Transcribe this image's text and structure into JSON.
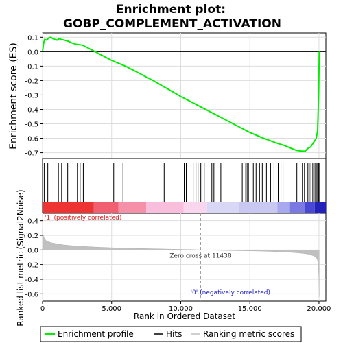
{
  "chart_data": {
    "type": "line",
    "title_line1": "Enrichment plot:",
    "title_line2": "GOBP_COMPLEMENT_ACTIVATION",
    "es_ylabel": "Enrichment score (ES)",
    "metric_ylabel": "Ranked list metric (Signal2Noise)",
    "xlabel": "Rank in Ordered Dataset",
    "xlim": [
      0,
      20500
    ],
    "es_ylim": [
      -0.74,
      0.13
    ],
    "metric_ylim": [
      -0.7,
      0.5
    ],
    "x_ticks": [
      {
        "value": 0,
        "label": "0"
      },
      {
        "value": 5000,
        "label": "5,000"
      },
      {
        "value": 10000,
        "label": "10,000"
      },
      {
        "value": 15000,
        "label": "15,000"
      },
      {
        "value": 20000,
        "label": "20,000"
      }
    ],
    "es_ticks": [
      {
        "value": 0.1,
        "label": "0.1"
      },
      {
        "value": 0.0,
        "label": "0.0"
      },
      {
        "value": -0.1,
        "label": "-0.1"
      },
      {
        "value": -0.2,
        "label": "-0.2"
      },
      {
        "value": -0.3,
        "label": "-0.3"
      },
      {
        "value": -0.4,
        "label": "-0.4"
      },
      {
        "value": -0.5,
        "label": "-0.5"
      },
      {
        "value": -0.6,
        "label": "-0.6"
      },
      {
        "value": -0.7,
        "label": "-0.7"
      }
    ],
    "metric_ticks": [
      {
        "value": 0.4,
        "label": "0.4"
      },
      {
        "value": 0.2,
        "label": "0.2"
      },
      {
        "value": 0.0,
        "label": "0.0"
      },
      {
        "value": -0.2,
        "label": "-0.2"
      },
      {
        "value": -0.4,
        "label": "-0.4"
      },
      {
        "value": -0.6,
        "label": "-0.6"
      }
    ],
    "series": [
      {
        "name": "Enrichment profile",
        "color": "#00ee00",
        "x": [
          0,
          80,
          150,
          300,
          450,
          600,
          750,
          900,
          1050,
          1200,
          1350,
          1500,
          1800,
          2100,
          2400,
          2700,
          2900,
          3200,
          5000,
          6000,
          8000,
          10000,
          12000,
          14000,
          15000,
          16000,
          17000,
          17500,
          18000,
          18400,
          18700,
          19000,
          19200,
          19400,
          19600,
          19800,
          19900,
          19980,
          20020
        ],
        "y": [
          0.0,
          0.06,
          0.085,
          0.08,
          0.095,
          0.1,
          0.09,
          0.085,
          0.08,
          0.09,
          0.085,
          0.082,
          0.075,
          0.062,
          0.052,
          0.048,
          0.045,
          0.03,
          -0.06,
          -0.1,
          -0.2,
          -0.31,
          -0.41,
          -0.51,
          -0.56,
          -0.6,
          -0.635,
          -0.65,
          -0.67,
          -0.685,
          -0.688,
          -0.69,
          -0.67,
          -0.66,
          -0.63,
          -0.6,
          -0.55,
          -0.3,
          0.0
        ]
      },
      {
        "name": "Hits",
        "color": "#000000",
        "positions": [
          120,
          380,
          620,
          1150,
          1380,
          1820,
          2520,
          2720,
          2950,
          5150,
          5820,
          8800,
          10250,
          10400,
          10900,
          11100,
          11250,
          11450,
          11700,
          12250,
          12400,
          12900,
          14450,
          14700,
          14800,
          14900,
          15250,
          15450,
          15700,
          15900,
          16200,
          16500,
          16750,
          17050,
          17250,
          17400,
          18400,
          18800,
          18950,
          19200,
          19300,
          19420,
          19550,
          19650,
          19750,
          19850,
          19920,
          19970,
          20010
        ]
      },
      {
        "name": "Ranking metric scores",
        "color": "#c0c0c0",
        "x": [
          0,
          50,
          150,
          300,
          600,
          1000,
          1500,
          2000,
          3000,
          4000,
          5000,
          6000,
          7000,
          8000,
          9000,
          10000,
          11000,
          11438,
          12000,
          13000,
          14000,
          15000,
          16000,
          16500,
          17000,
          17500,
          18000,
          18500,
          19000,
          19300,
          19600,
          19800,
          19900,
          19960,
          20000,
          20020
        ],
        "y": [
          0.27,
          0.2,
          0.15,
          0.12,
          0.1,
          0.085,
          0.07,
          0.06,
          0.048,
          0.038,
          0.03,
          0.025,
          0.02,
          0.016,
          0.012,
          0.008,
          0.004,
          0.0,
          -0.003,
          -0.006,
          -0.01,
          -0.013,
          -0.017,
          -0.02,
          -0.023,
          -0.027,
          -0.033,
          -0.04,
          -0.05,
          -0.06,
          -0.08,
          -0.1,
          -0.14,
          -0.22,
          -0.4,
          -0.64
        ]
      }
    ],
    "zero_cross": {
      "value": 11438,
      "label": "Zero cross at 11438"
    },
    "pos_label": "'1' (positively correlated)",
    "neg_label": "'0' (negatively correlated)",
    "colors": {
      "positive": "#dd2222",
      "negative": "#2222cc",
      "grid": "#dddddd"
    },
    "heatmap_bands": [
      {
        "start": 0,
        "end": 3700,
        "color": "#ee3333"
      },
      {
        "start": 3700,
        "end": 5500,
        "color": "#f06070"
      },
      {
        "start": 5500,
        "end": 7500,
        "color": "#f490a8"
      },
      {
        "start": 7500,
        "end": 10200,
        "color": "#f8bedb"
      },
      {
        "start": 10200,
        "end": 11900,
        "color": "#f8d6ee"
      },
      {
        "start": 11900,
        "end": 14200,
        "color": "#d8d8f6"
      },
      {
        "start": 14200,
        "end": 17000,
        "color": "#c8c8f2"
      },
      {
        "start": 17000,
        "end": 17900,
        "color": "#a8a8ee"
      },
      {
        "start": 17900,
        "end": 19000,
        "color": "#7a7ae2"
      },
      {
        "start": 19000,
        "end": 19700,
        "color": "#4848d4"
      },
      {
        "start": 19700,
        "end": 20500,
        "color": "#2222bb"
      }
    ],
    "legend": [
      {
        "label": "Enrichment profile",
        "color": "#00ee00"
      },
      {
        "label": "Hits",
        "color": "#000000"
      },
      {
        "label": "Ranking metric scores",
        "color": "#c0c0c0"
      }
    ]
  }
}
